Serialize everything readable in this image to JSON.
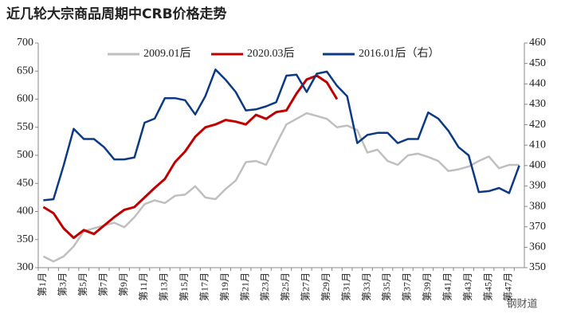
{
  "chart_data": {
    "type": "line",
    "title": "近几轮大宗商品周期中CRB价格走势",
    "categories": [
      "第1月",
      null,
      "第3月",
      null,
      "第5月",
      null,
      "第7月",
      null,
      "第9月",
      null,
      "第11月",
      null,
      "第13月",
      null,
      "第15月",
      null,
      "第17月",
      null,
      "第19月",
      null,
      "第21月",
      null,
      "第23月",
      null,
      "第25月",
      null,
      "第27月",
      null,
      "第29月",
      null,
      "第31月",
      null,
      "第33月",
      null,
      "第35月",
      null,
      "第37月",
      null,
      "第39月",
      null,
      "第41月",
      null,
      "第43月",
      null,
      "第45月",
      null,
      "第47月",
      null
    ],
    "series": [
      {
        "name": "2009.01后",
        "color": "#bfbfbf",
        "values": [
          320,
          311,
          320,
          338,
          365,
          370,
          375,
          380,
          372,
          390,
          413,
          420,
          415,
          428,
          430,
          445,
          425,
          422,
          440,
          455,
          488,
          490,
          483,
          520,
          555,
          565,
          575,
          570,
          565,
          550,
          553,
          545,
          505,
          510,
          490,
          483,
          500,
          503,
          497,
          490,
          472,
          475,
          480,
          490,
          498,
          477,
          483,
          483
        ]
      },
      {
        "name": "2020.03后",
        "color": "#c00000",
        "values": [
          408,
          397,
          370,
          353,
          367,
          360,
          375,
          390,
          403,
          408,
          425,
          442,
          458,
          488,
          507,
          533,
          550,
          555,
          563,
          560,
          555,
          572,
          565,
          577,
          580,
          610,
          635,
          642,
          630,
          600,
          null,
          null,
          null,
          null,
          null,
          null,
          null,
          null,
          null,
          null,
          null,
          null,
          null,
          null,
          null,
          null,
          null,
          null
        ]
      },
      {
        "name": "2016.01后（右）",
        "color": "#0b3a82",
        "axis": "y2",
        "values": [
          383,
          383.5,
          400,
          418,
          413,
          413,
          409,
          403,
          403,
          404,
          421,
          423,
          433,
          433,
          432,
          425,
          434,
          447,
          442,
          436,
          427,
          427.5,
          429,
          431,
          444,
          444.5,
          436,
          445,
          446,
          439,
          434,
          411,
          415,
          416,
          416,
          411,
          413,
          413,
          426,
          423,
          417,
          409,
          405,
          387,
          387.5,
          389,
          386.5,
          400
        ]
      }
    ],
    "ylim": [
      300,
      700
    ],
    "yticks": [
      300,
      350,
      400,
      450,
      500,
      550,
      600,
      650,
      700
    ],
    "y2lim": [
      350,
      460
    ],
    "y2ticks": [
      350,
      360,
      370,
      380,
      390,
      400,
      410,
      420,
      430,
      440,
      450,
      460
    ],
    "watermark": "钢财道"
  }
}
